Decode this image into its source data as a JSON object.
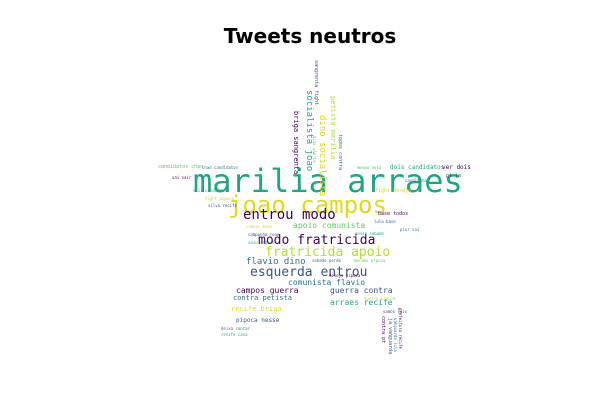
{
  "title": "Tweets neutros",
  "palette": {
    "teal": "#21a585",
    "yellow": "#e3d91a",
    "purple": "#440154",
    "indigo": "#3b528b",
    "blue": "#2c728e",
    "green": "#5ec962",
    "lime": "#b5de2b"
  },
  "words": {
    "marilia_arraes": "marilia arraes",
    "joao_campos": "joao campos",
    "entrou_modo": "entrou modo",
    "modo_fratricida": "modo fratricida",
    "fratricida_apoio": "fratricida apoio",
    "esquerda_entrou": "esquerda entrou",
    "apoio_comunista": "apoio comunista",
    "flavio_dino": "flavio dino",
    "comunista_flavio": "comunista flavio",
    "campos_guerra": "campos guerra",
    "guerra_contra": "guerra contra",
    "contra_petista": "contra petista",
    "arraes_recife": "arraes recife",
    "recife_briga": "recife briga",
    "pipoca_nesse": "pipoca nesse",
    "briga_sangrenta": "briga sangrenta",
    "socialista_joao": "socialista joao",
    "dino_socialista": "dino socialista",
    "petista_marilia": "petista marilia",
    "sangrenta_fight": "sangrenta fight",
    "todos_contra": "todos contra",
    "candidatos_chao": "candidatos chao",
    "dois_candidatos": "dois candidatos",
    "ver_dois": "ver dois",
    "pt_ja": "pt ja",
    "base_todos": "base todos",
    "fight_desejo": "fight desejo",
    "vai_sair": "vai sair",
    "silva_recife": "silva recife",
    "nesse_sabado": "nesse sabado",
    "sabado_perde": "sabado perde",
    "campos_base": "campos base",
    "campanha_joao": "campanha joao",
    "pipoca_nesse_small": "desejo pipoca",
    "contra_pt": "contra pt",
    "ja_vanguarda": "ja vanguarda",
    "prefeitura_recife": "prefeitura recife",
    "recife_casa": "recife casa",
    "deixa_contar": "deixa contar",
    "tinha_certeza": "chao candidatos",
    "sair_silva": "sair candidatos",
    "joao_campos_small": "saiu sabado",
    "vamos_luis": "vamos luis",
    "guerra_pipoca": "guerra pipoca",
    "dias_alerta": "dias alerta",
    "candidata": "candidata",
    "pior_sai": "pior sai",
    "entrou_small": "moraes pipoca",
    "vanguarda_lula": "vanguarda lula",
    "lula_base": "lula base",
    "mesma_nota": "mesma nota",
    "fight_prefeitura": "fight pipoca"
  }
}
